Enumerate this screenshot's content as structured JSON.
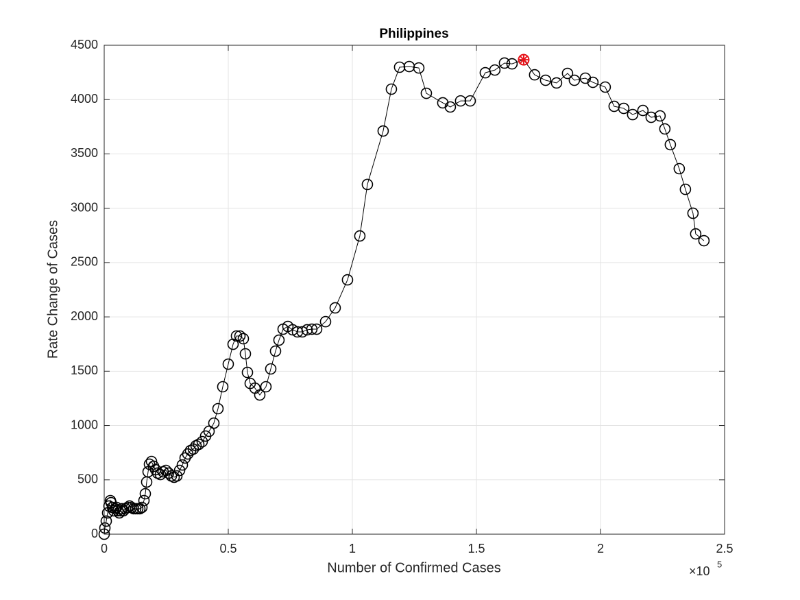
{
  "chart_data": {
    "type": "line",
    "title": "Philippines",
    "x_label": "Number of Confirmed Cases",
    "y_label": "Rate Change of Cases",
    "x_multiplier": {
      "base": "×10",
      "exponent": "5"
    },
    "series": [
      {
        "name": "Philippines",
        "color": "#000000",
        "marker": "circle",
        "x": [
          0,
          280,
          830,
          1380,
          1930,
          2490,
          2760,
          3310,
          3870,
          4420,
          4970,
          5520,
          6080,
          6630,
          7180,
          7730,
          8560,
          9390,
          10220,
          11050,
          11880,
          12700,
          13530,
          14360,
          15190,
          16020,
          16570,
          17120,
          17680,
          18230,
          19060,
          19890,
          20720,
          21540,
          22650,
          23750,
          24860,
          25960,
          27070,
          28170,
          29280,
          30380,
          31490,
          32590,
          33700,
          34800,
          35910,
          37010,
          38120,
          39500,
          40880,
          42260,
          44190,
          45850,
          47780,
          49990,
          51930,
          53310,
          54690,
          56070,
          56900,
          57730,
          58830,
          60760,
          62700,
          65180,
          67120,
          69050,
          70430,
          72090,
          74020,
          75960,
          77890,
          79820,
          81760,
          83690,
          85620,
          89210,
          93080,
          98050,
          103020,
          106060,
          112410,
          115730,
          119040,
          122910,
          126780,
          129820,
          136440,
          139480,
          143620,
          147490,
          153570,
          157430,
          161300,
          164340,
          169040,
          173450,
          177870,
          182290,
          186710,
          189470,
          193890,
          196930,
          201900,
          205490,
          209360,
          212950,
          217090,
          220410,
          223990,
          225930,
          228140,
          231730,
          234220,
          237260,
          238360,
          241680
        ],
        "values": [
          0,
          57,
          120,
          196,
          259,
          309,
          290,
          246,
          215,
          234,
          246,
          215,
          196,
          215,
          234,
          215,
          234,
          246,
          259,
          246,
          234,
          234,
          234,
          234,
          246,
          309,
          372,
          480,
          574,
          644,
          669,
          625,
          593,
          562,
          549,
          574,
          587,
          562,
          536,
          524,
          536,
          587,
          637,
          701,
          738,
          770,
          783,
          814,
          827,
          852,
          903,
          947,
          1022,
          1155,
          1357,
          1565,
          1748,
          1824,
          1824,
          1799,
          1660,
          1489,
          1388,
          1344,
          1281,
          1357,
          1521,
          1685,
          1786,
          1887,
          1912,
          1881,
          1862,
          1862,
          1881,
          1887,
          1887,
          1956,
          2083,
          2341,
          2745,
          3219,
          3711,
          4096,
          4298,
          4304,
          4291,
          4058,
          3970,
          3932,
          3988,
          3988,
          4247,
          4272,
          4336,
          4329,
          4367,
          4228,
          4178,
          4153,
          4241,
          4178,
          4197,
          4159,
          4115,
          3938,
          3919,
          3862,
          3900,
          3837,
          3850,
          3730,
          3585,
          3364,
          3174,
          2954,
          2764,
          2701
        ]
      }
    ],
    "highlight": {
      "index": 96,
      "color": "#e8141b"
    },
    "xlim": [
      0,
      250000
    ],
    "xticks": [
      0,
      {
        "value": 50000,
        "label": "0.5"
      },
      {
        "value": 100000,
        "label": "1"
      },
      {
        "value": 150000,
        "label": "1.5"
      },
      {
        "value": 200000,
        "label": "2"
      },
      {
        "value": 250000,
        "label": "2.5"
      }
    ],
    "ylim": [
      0,
      4500
    ],
    "yticks": [
      0,
      500,
      1000,
      1500,
      2000,
      2500,
      3000,
      3500,
      4000,
      4500
    ],
    "grid": true
  }
}
